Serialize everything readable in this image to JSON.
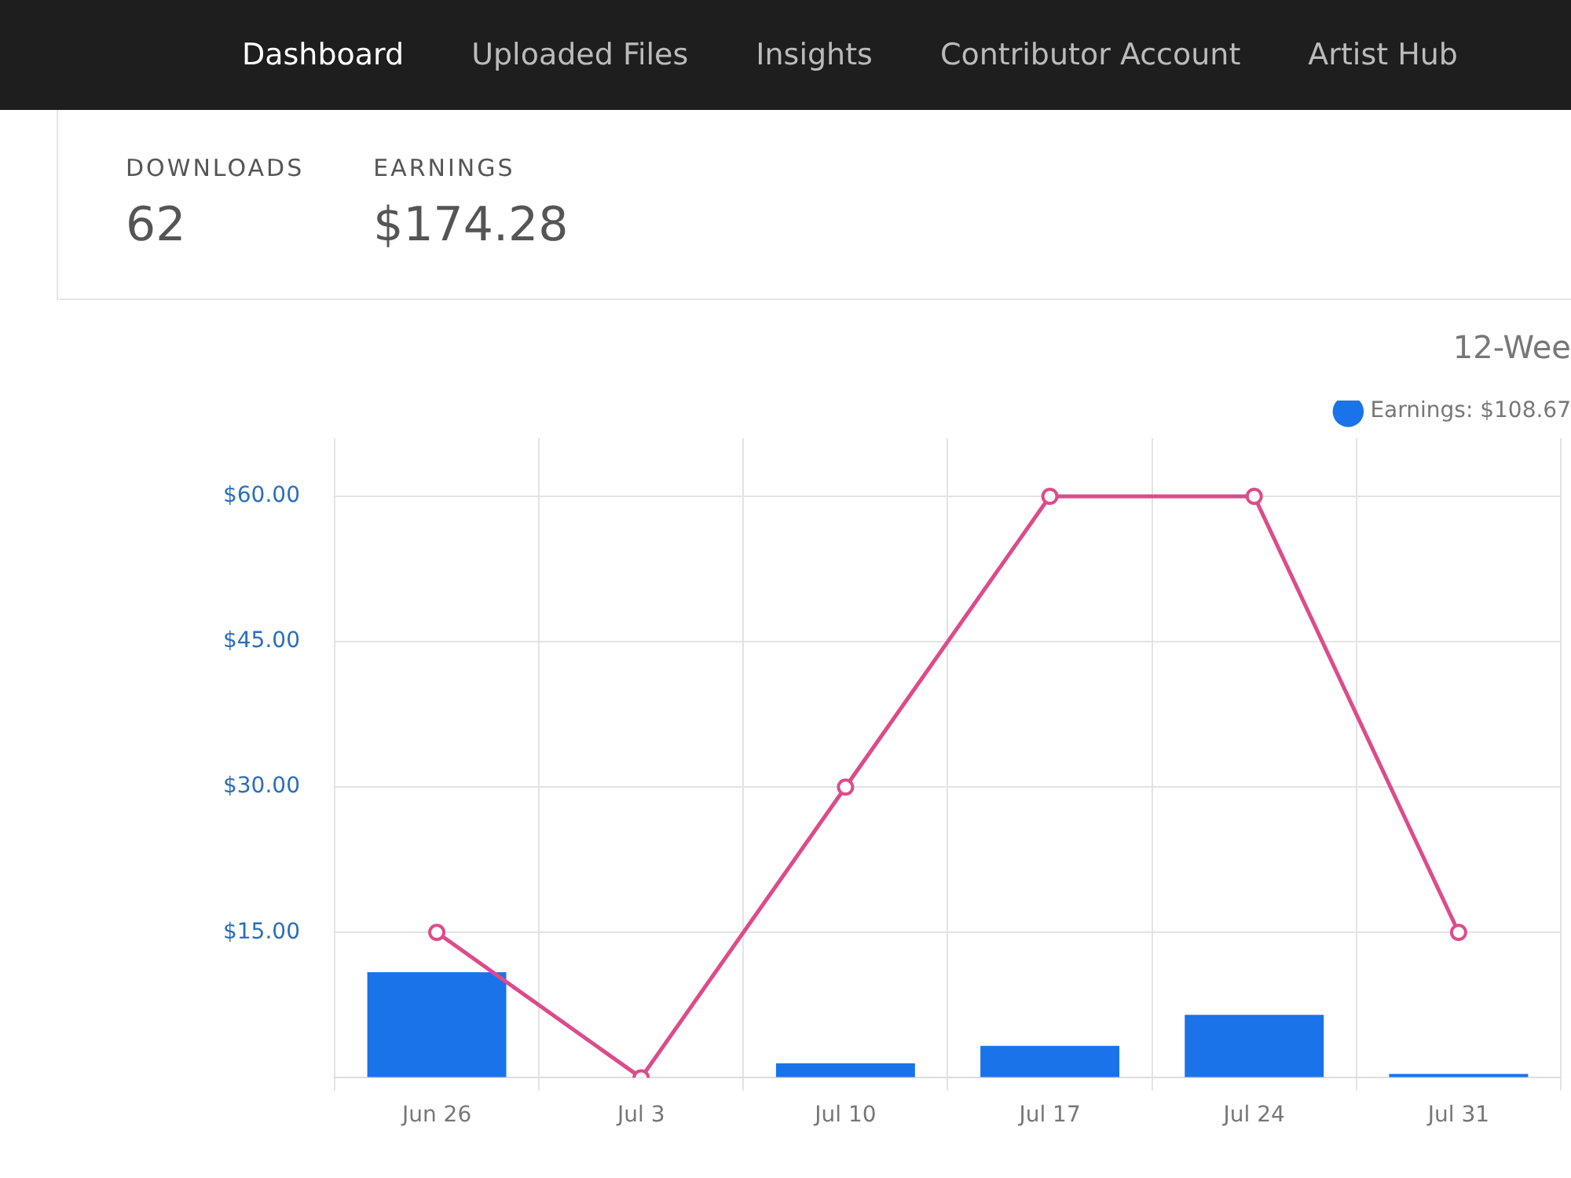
{
  "chart_data": {
    "type": "bar",
    "title": "12-Wee",
    "annotations": [
      "Dashboard",
      "Uploaded Files",
      "Insights",
      "Contributor Account",
      "Artist Hub",
      "DOWNLOADS",
      "62",
      "EARNINGS",
      "$174.28"
    ],
    "categories": [
      "Jun 26",
      "Jul 3",
      "Jul 10",
      "Jul 17",
      "Jul 24",
      "Jul 31"
    ],
    "series": [
      {
        "name": "Earnings: $108.67",
        "color": "#1a73e8",
        "values": [
          10.9,
          0,
          1.5,
          3.3,
          6.5,
          0.4
        ]
      },
      {
        "type": "line",
        "color": "#dd4b8a",
        "marker": "circle",
        "values": [
          15,
          0,
          30,
          60,
          60,
          15
        ]
      }
    ],
    "ylim": [
      0,
      66
    ],
    "yticks": [
      {
        "value": 0,
        "label": null
      },
      {
        "value": 15,
        "label": "$15.00"
      },
      {
        "value": 30,
        "label": "$30.00"
      },
      {
        "value": 45,
        "label": "$45.00"
      },
      {
        "value": 60,
        "label": "$60.00"
      }
    ],
    "grid": true,
    "legend": "top right"
  }
}
